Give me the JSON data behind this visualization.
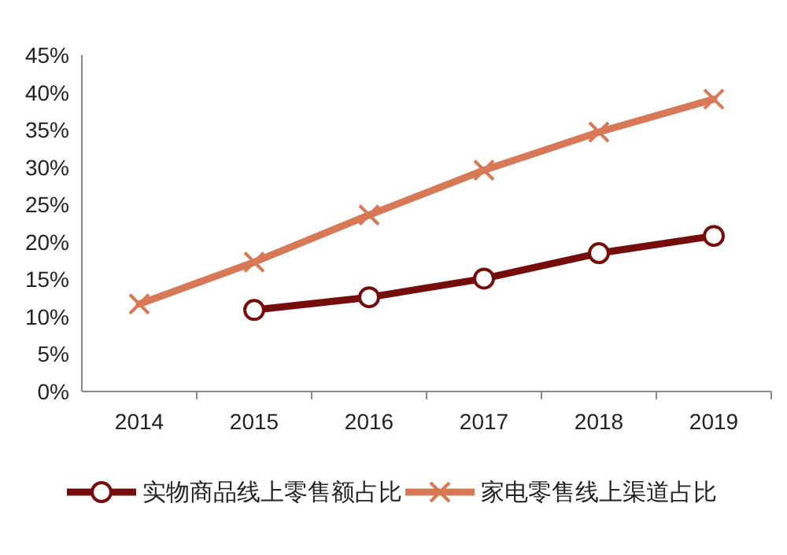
{
  "chart_data": {
    "type": "line",
    "categories": [
      "2014",
      "2015",
      "2016",
      "2017",
      "2018",
      "2019"
    ],
    "series": [
      {
        "name": "实物商品线上零售额占比",
        "color": "#760d0d",
        "marker": "circle",
        "values": [
          null,
          10.9,
          12.6,
          15.1,
          18.5,
          20.8
        ]
      },
      {
        "name": "家电零售线上渠道占比",
        "color": "#d77856",
        "marker": "cross",
        "values": [
          11.7,
          17.3,
          23.6,
          29.6,
          34.7,
          39.1
        ]
      }
    ],
    "ylim": [
      0,
      45
    ],
    "yticks": [
      {
        "value": 0,
        "label": "0%"
      },
      {
        "value": 5,
        "label": "5%"
      },
      {
        "value": 10,
        "label": "10%"
      },
      {
        "value": 15,
        "label": "15%"
      },
      {
        "value": 20,
        "label": "20%"
      },
      {
        "value": 25,
        "label": "25%"
      },
      {
        "value": 30,
        "label": "30%"
      },
      {
        "value": 35,
        "label": "35%"
      },
      {
        "value": 40,
        "label": "40%"
      },
      {
        "value": 45,
        "label": "45%"
      }
    ],
    "legend": "bottom"
  }
}
